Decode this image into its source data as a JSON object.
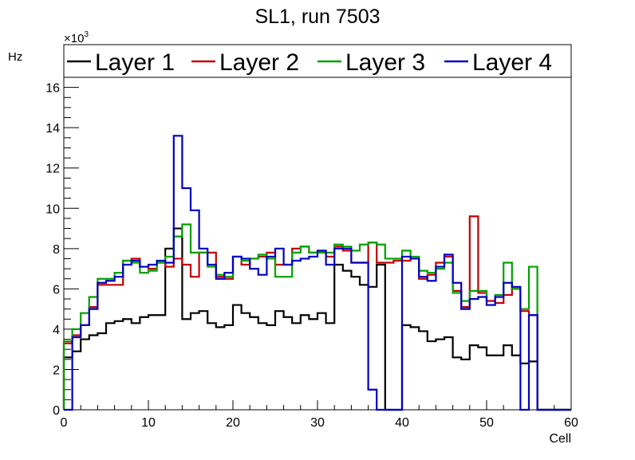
{
  "chart_data": {
    "type": "line",
    "title": "SL1, run 7503",
    "xlabel": "Cell",
    "ylabel": "Hz",
    "y_multiplier_label": "×10",
    "y_multiplier_exp": "3",
    "xlim": [
      0,
      60
    ],
    "ylim": [
      0,
      16.5
    ],
    "x_ticks": [
      0,
      10,
      20,
      30,
      40,
      50,
      60
    ],
    "y_ticks": [
      0,
      2,
      4,
      6,
      8,
      10,
      12,
      14,
      16
    ],
    "grid": false,
    "legend_position": "top",
    "bin_edges": [
      0,
      1,
      2,
      3,
      4,
      5,
      6,
      7,
      8,
      9,
      10,
      11,
      12,
      13,
      14,
      15,
      16,
      17,
      18,
      19,
      20,
      21,
      22,
      23,
      24,
      25,
      26,
      27,
      28,
      29,
      30,
      31,
      32,
      33,
      34,
      35,
      36,
      37,
      38,
      39,
      40,
      41,
      42,
      43,
      44,
      45,
      46,
      47,
      48,
      49,
      50,
      51,
      52,
      53,
      54,
      55,
      56,
      57,
      58,
      59,
      60
    ],
    "series": [
      {
        "name": "Layer 1",
        "color": "#000000",
        "values": [
          2.6,
          2.9,
          3.5,
          3.7,
          3.8,
          4.3,
          4.4,
          4.5,
          4.3,
          4.6,
          4.7,
          4.7,
          8.0,
          9.0,
          4.5,
          4.8,
          4.9,
          4.3,
          4.1,
          4.2,
          5.2,
          4.8,
          4.6,
          4.3,
          4.2,
          4.9,
          4.6,
          4.3,
          4.7,
          4.5,
          4.8,
          4.3,
          7.2,
          6.9,
          6.6,
          6.2,
          6.1,
          7.2,
          0,
          0,
          4.2,
          4.1,
          3.9,
          3.4,
          3.5,
          3.6,
          2.6,
          2.5,
          3.2,
          3.1,
          2.7,
          2.7,
          3.2,
          2.7,
          2.3,
          2.4,
          0,
          0,
          0,
          0
        ]
      },
      {
        "name": "Layer 2",
        "color": "#c00000",
        "values": [
          3.3,
          3.7,
          4.2,
          5.1,
          6.2,
          6.2,
          6.2,
          7.4,
          7.5,
          7.1,
          7.0,
          7.3,
          7.1,
          7.5,
          7.2,
          6.6,
          7.8,
          7.8,
          6.6,
          6.5,
          7.6,
          7.2,
          7.5,
          7.6,
          7.8,
          7.2,
          7.2,
          8.0,
          8.1,
          7.8,
          7.8,
          7.6,
          8.1,
          7.9,
          7.3,
          7.3,
          8.3,
          7.3,
          7.3,
          7.4,
          7.4,
          7.5,
          6.5,
          6.7,
          7.3,
          7.6,
          5.9,
          5.1,
          9.6,
          5.8,
          5.4,
          5.3,
          5.7,
          6.0,
          4.9,
          4.7,
          0,
          0,
          0,
          0
        ]
      },
      {
        "name": "Layer 3",
        "color": "#00a000",
        "values": [
          3.4,
          4.0,
          4.8,
          5.6,
          6.5,
          6.5,
          6.8,
          7.4,
          7.3,
          6.8,
          6.9,
          7.3,
          7.6,
          8.6,
          9.2,
          7.8,
          7.8,
          7.1,
          6.7,
          6.6,
          7.6,
          7.4,
          7.5,
          7.7,
          7.5,
          6.6,
          6.6,
          7.8,
          8.1,
          7.8,
          7.8,
          7.8,
          8.2,
          8.1,
          7.9,
          8.2,
          8.3,
          8.2,
          7.5,
          7.5,
          7.9,
          7.6,
          6.9,
          6.8,
          7.0,
          7.3,
          5.8,
          5.4,
          5.9,
          5.9,
          5.2,
          5.7,
          7.3,
          6.0,
          5.0,
          7.1,
          0,
          0,
          0,
          0
        ]
      },
      {
        "name": "Layer 4",
        "color": "#0000c0",
        "values": [
          0,
          3.6,
          4.2,
          5.0,
          6.3,
          6.4,
          6.6,
          7.2,
          7.4,
          7.1,
          7.2,
          7.4,
          7.3,
          13.6,
          11.0,
          9.9,
          8.0,
          7.2,
          6.5,
          6.8,
          7.6,
          7.5,
          7.0,
          6.7,
          7.6,
          8.0,
          7.2,
          7.4,
          7.5,
          7.6,
          7.9,
          7.2,
          8.0,
          8.0,
          7.3,
          7.3,
          1.0,
          0,
          0,
          0,
          7.6,
          7.5,
          6.6,
          6.4,
          7.1,
          7.7,
          6.3,
          5.0,
          5.5,
          5.6,
          5.2,
          5.6,
          6.3,
          6.1,
          0,
          4.7,
          0,
          0,
          0,
          0
        ]
      }
    ]
  }
}
